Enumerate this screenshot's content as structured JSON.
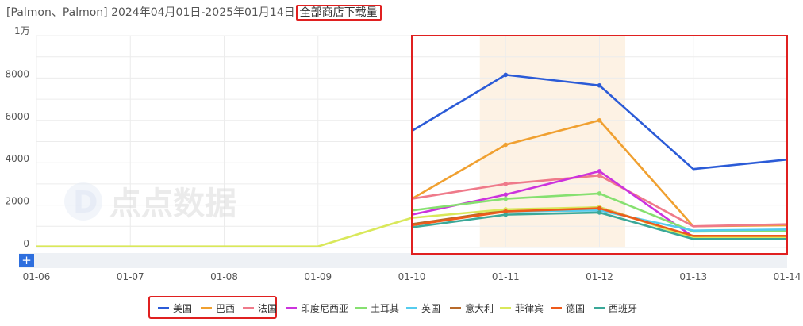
{
  "header": {
    "title": "[Palmon、Palmon] 2024年04月01日-2025年01月14日",
    "scope_label": "全部商店下载量"
  },
  "watermark": {
    "text": "点点数据",
    "logo_glyph": "D"
  },
  "zoom_button": {
    "label": "+"
  },
  "chart_data": {
    "type": "line",
    "title": "",
    "y_unit_label": "1万",
    "x": [
      "01-06",
      "01-07",
      "01-08",
      "01-09",
      "01-10",
      "01-11",
      "01-12",
      "01-13",
      "01-14"
    ],
    "ylim": [
      0,
      10000
    ],
    "y_ticks": [
      "0",
      "2000",
      "4000",
      "6000",
      "8000"
    ],
    "grid": true,
    "legend_position": "bottom",
    "highlight_range": [
      "01-11",
      "01-12"
    ],
    "series": [
      {
        "name": "美国",
        "color": "#2b5bd7",
        "values": [
          null,
          null,
          null,
          null,
          5500,
          8150,
          7650,
          3700,
          4150
        ]
      },
      {
        "name": "巴西",
        "color": "#f0a030",
        "values": [
          null,
          null,
          null,
          null,
          2300,
          4850,
          6000,
          1000,
          1050
        ]
      },
      {
        "name": "法国",
        "color": "#ef7a8a",
        "values": [
          null,
          null,
          null,
          null,
          2300,
          3000,
          3400,
          1000,
          1100
        ]
      },
      {
        "name": "印度尼西亚",
        "color": "#cc33dd",
        "values": [
          null,
          null,
          null,
          null,
          1550,
          2500,
          3600,
          500,
          550
        ]
      },
      {
        "name": "土耳其",
        "color": "#86e070",
        "values": [
          null,
          null,
          null,
          null,
          1750,
          2300,
          2550,
          750,
          800
        ]
      },
      {
        "name": "英国",
        "color": "#55ccee",
        "values": [
          null,
          null,
          null,
          null,
          1100,
          1700,
          1750,
          800,
          850
        ]
      },
      {
        "name": "意大利",
        "color": "#b86a2a",
        "values": [
          null,
          null,
          null,
          null,
          1100,
          1750,
          1900,
          500,
          550
        ]
      },
      {
        "name": "菲律宾",
        "color": "#d9e85a",
        "values": [
          50,
          50,
          50,
          50,
          1400,
          1800,
          1900,
          450,
          500
        ]
      },
      {
        "name": "德国",
        "color": "#ee5a1a",
        "values": [
          null,
          null,
          null,
          null,
          1050,
          1700,
          1850,
          550,
          550
        ]
      },
      {
        "name": "西班牙",
        "color": "#3aa898",
        "values": [
          null,
          null,
          null,
          null,
          950,
          1550,
          1650,
          400,
          400
        ]
      }
    ]
  }
}
